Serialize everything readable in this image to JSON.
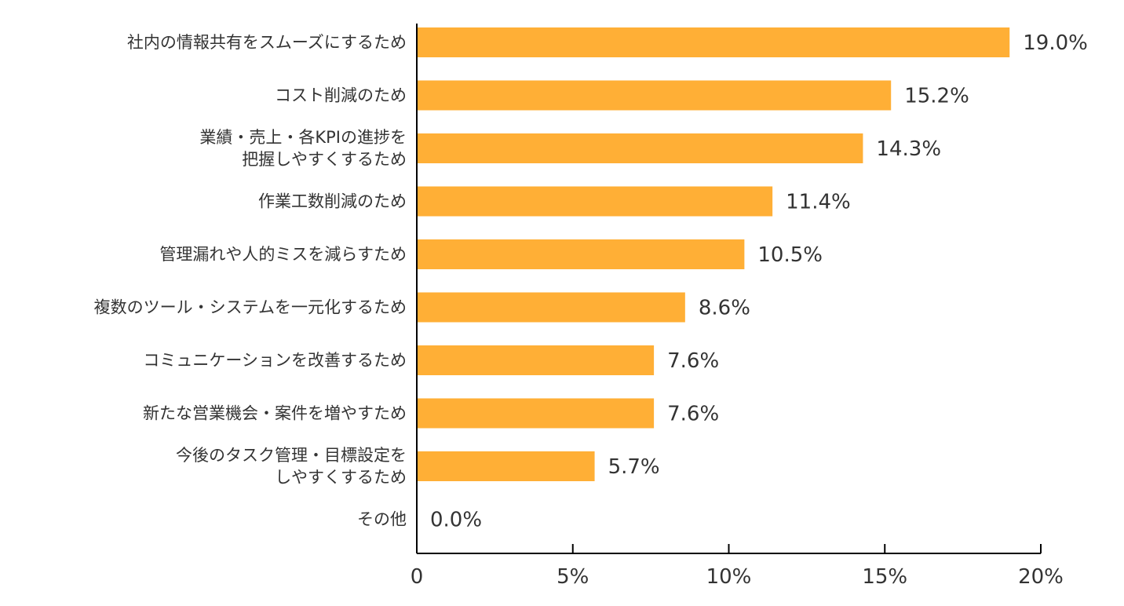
{
  "chart_data": {
    "type": "bar",
    "orientation": "horizontal",
    "title": "",
    "xlabel": "",
    "ylabel": "",
    "xlim": [
      0,
      20
    ],
    "x_ticks": [
      0,
      5,
      10,
      15,
      20
    ],
    "x_tick_labels": [
      "0",
      "5%",
      "10%",
      "15%",
      "20%"
    ],
    "grid": false,
    "legend": "none",
    "bar_color": "#FFAF36",
    "axis_color": "#000000",
    "text_color": "#333333",
    "categories": [
      [
        "社内の情報共有をスムーズにするため"
      ],
      [
        "コスト削減のため"
      ],
      [
        "業績・売上・各KPIの進捗を",
        "把握しやすくするため"
      ],
      [
        "作業工数削減のため"
      ],
      [
        "管理漏れや人的ミスを減らすため"
      ],
      [
        "複数のツール・システムを一元化するため"
      ],
      [
        "コミュニケーションを改善するため"
      ],
      [
        "新たな営業機会・案件を増やすため"
      ],
      [
        "今後のタスク管理・目標設定を",
        "しやすくするため"
      ],
      [
        "その他"
      ]
    ],
    "values": [
      19.0,
      15.2,
      14.3,
      11.4,
      10.5,
      8.6,
      7.6,
      7.6,
      5.7,
      0.0
    ],
    "value_labels": [
      "19.0%",
      "15.2%",
      "14.3%",
      "11.4%",
      "10.5%",
      "8.6%",
      "7.6%",
      "7.6%",
      "5.7%",
      "0.0%"
    ]
  }
}
